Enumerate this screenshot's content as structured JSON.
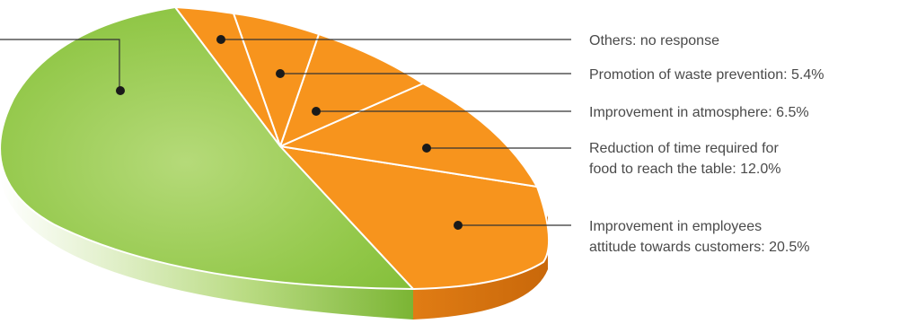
{
  "chart_data": {
    "type": "pie",
    "title": "",
    "colors": {
      "green": "#8cc63f",
      "green_light": "#b4d978",
      "orange": "#f7941d",
      "orange_dark": "#d9730e",
      "slice_edge": "#ffffff",
      "leader": "#333333",
      "label": "#4a4a4a"
    },
    "slices": [
      {
        "label": "Others: no response",
        "value": 1.0,
        "color": "orange"
      },
      {
        "label": "Promotion of waste prevention: 5.4%",
        "value": 5.4,
        "color": "orange"
      },
      {
        "label": "Improvement in atmosphere: 6.5%",
        "value": 6.5,
        "color": "orange"
      },
      {
        "label_lines": [
          "Reduction of time required for",
          "food to reach the table: 12.0%"
        ],
        "value": 12.0,
        "color": "orange"
      },
      {
        "label_lines": [
          "Improvement in employees",
          "attitude towards customers: 20.5%"
        ],
        "value": 20.5,
        "color": "orange"
      },
      {
        "label": "",
        "value": 54.6,
        "color": "green"
      }
    ]
  }
}
